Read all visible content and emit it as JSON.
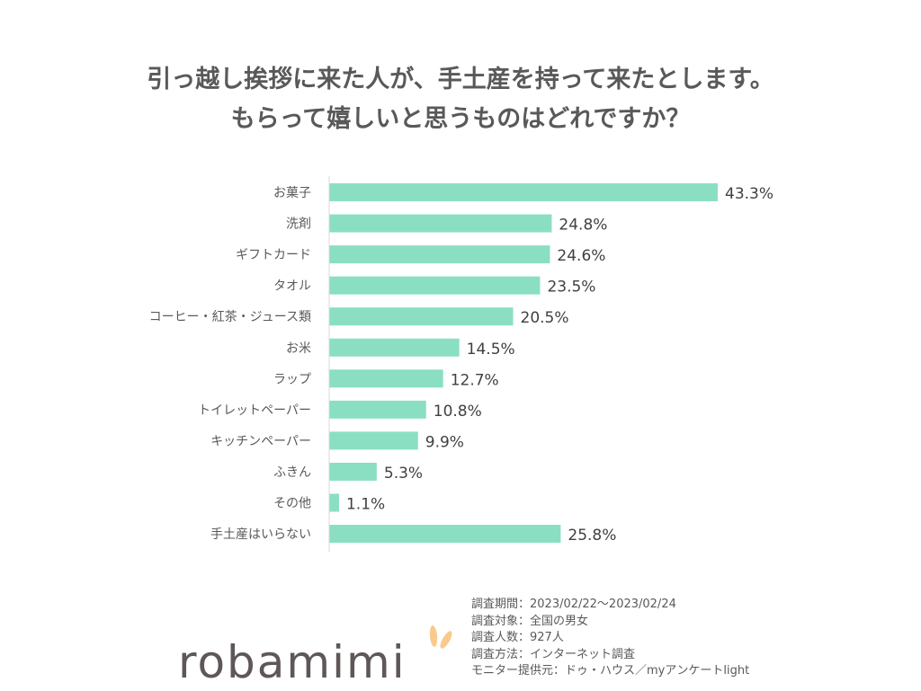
{
  "title": {
    "line1": "引っ越し挨拶に来た人が、手土産を持って来たとします。",
    "line2": "もらって嬉しいと思うものはどれですか？"
  },
  "chart_data": {
    "type": "bar",
    "orientation": "horizontal",
    "categories": [
      "お菓子",
      "洗剤",
      "ギフトカード",
      "タオル",
      "コーヒー・紅茶・ジュース類",
      "お米",
      "ラップ",
      "トイレットペーパー",
      "キッチンペーパー",
      "ふきん",
      "その他",
      "手土産はいらない"
    ],
    "values": [
      43.3,
      24.8,
      24.6,
      23.5,
      20.5,
      14.5,
      12.7,
      10.8,
      9.9,
      5.3,
      1.1,
      25.8
    ],
    "labels": [
      "43.3%",
      "24.8%",
      "24.6%",
      "23.5%",
      "20.5%",
      "14.5%",
      "12.7%",
      "10.8%",
      "9.9%",
      "5.3%",
      "1.1%",
      "25.8%"
    ],
    "unit": "%",
    "xlim": [
      0,
      50
    ],
    "grid": false,
    "bar_color": "#8ADFC3"
  },
  "notes": [
    "調査期間：2023/02/22～2023/02/24",
    "調査対象：全国の男女",
    "調査人数：927人",
    "調査方法：インターネット調査",
    "モニター提供元：ドゥ・ハウス／myアンケートlight"
  ],
  "logo": {
    "text": "robamimi",
    "text_color": "#5f5757",
    "ear_color": "#F8CB8C"
  }
}
